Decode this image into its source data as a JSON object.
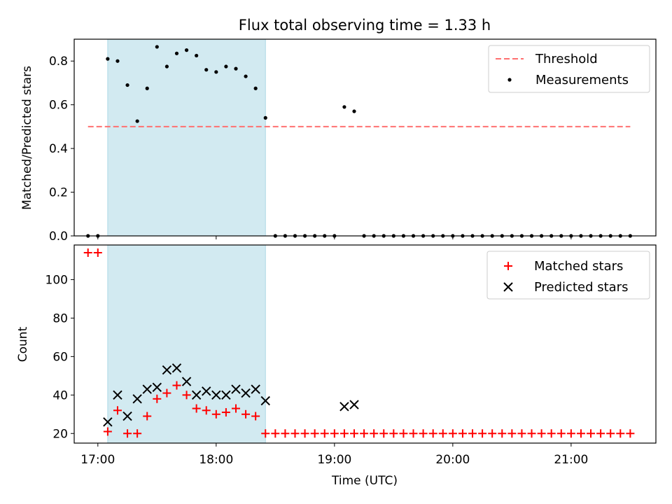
{
  "title": "Flux total observing time = 1.33 h",
  "colors": {
    "threshold": "#ff7070",
    "measurements": "#000000",
    "matched": "#ff0000",
    "predicted": "#000000",
    "shade": "#add8e6"
  },
  "chart_data": [
    {
      "type": "scatter",
      "ylabel": "Matched/Predicted stars",
      "xlabel": "",
      "xlim": [
        "16:48",
        "21:43"
      ],
      "ylim": [
        0,
        0.9
      ],
      "yticks": [
        "0.0",
        "0.2",
        "0.4",
        "0.6",
        "0.8"
      ],
      "shaded_span": [
        "17:05",
        "18:25"
      ],
      "legend": {
        "position": "top-right",
        "entries": [
          "Threshold",
          "Measurements"
        ]
      },
      "threshold": {
        "name": "Threshold",
        "y": 0.5,
        "x": [
          "16:55",
          "21:30"
        ],
        "style": "dashed"
      },
      "series": [
        {
          "name": "Measurements",
          "x": [
            "16:55",
            "17:00",
            "17:05",
            "17:10",
            "17:15",
            "17:20",
            "17:25",
            "17:30",
            "17:35",
            "17:40",
            "17:45",
            "17:50",
            "17:55",
            "18:00",
            "18:05",
            "18:10",
            "18:15",
            "18:20",
            "18:25",
            "18:30",
            "18:35",
            "18:40",
            "18:45",
            "18:50",
            "18:55",
            "19:00",
            "19:05",
            "19:10",
            "19:15",
            "19:20",
            "19:25",
            "19:30",
            "19:35",
            "19:40",
            "19:45",
            "19:50",
            "19:55",
            "20:00",
            "20:05",
            "20:10",
            "20:15",
            "20:20",
            "20:25",
            "20:30",
            "20:35",
            "20:40",
            "20:45",
            "20:50",
            "20:55",
            "21:00",
            "21:05",
            "21:10",
            "21:15",
            "21:20",
            "21:25",
            "21:30"
          ],
          "y": [
            0,
            0,
            0.81,
            0.8,
            0.69,
            0.525,
            0.675,
            0.865,
            0.775,
            0.835,
            0.85,
            0.825,
            0.76,
            0.75,
            0.775,
            0.765,
            0.73,
            0.675,
            0.54,
            0,
            0,
            0,
            0,
            0,
            0,
            0,
            0.59,
            0.57,
            0,
            0,
            0,
            0,
            0,
            0,
            0,
            0,
            0,
            0,
            0,
            0,
            0,
            0,
            0,
            0,
            0,
            0,
            0,
            0,
            0,
            0,
            0,
            0,
            0,
            0,
            0,
            0
          ]
        }
      ]
    },
    {
      "type": "scatter",
      "ylabel": "Count",
      "xlabel": "Time (UTC)",
      "xlim": [
        "16:48",
        "21:43"
      ],
      "ylim": [
        15,
        118
      ],
      "yticks": [
        "20",
        "40",
        "60",
        "80",
        "100"
      ],
      "xticks": [
        "17:00",
        "18:00",
        "19:00",
        "20:00",
        "21:00"
      ],
      "shaded_span": [
        "17:05",
        "18:25"
      ],
      "legend": {
        "position": "top-right",
        "entries": [
          "Matched stars",
          "Predicted stars"
        ]
      },
      "series": [
        {
          "name": "Matched stars",
          "marker": "plus",
          "x": [
            "16:55",
            "17:00",
            "17:05",
            "17:10",
            "17:15",
            "17:20",
            "17:25",
            "17:30",
            "17:35",
            "17:40",
            "17:45",
            "17:50",
            "17:55",
            "18:00",
            "18:05",
            "18:10",
            "18:15",
            "18:20",
            "18:25",
            "18:30",
            "18:35",
            "18:40",
            "18:45",
            "18:50",
            "18:55",
            "19:00",
            "19:05",
            "19:10",
            "19:15",
            "19:20",
            "19:25",
            "19:30",
            "19:35",
            "19:40",
            "19:45",
            "19:50",
            "19:55",
            "20:00",
            "20:05",
            "20:10",
            "20:15",
            "20:20",
            "20:25",
            "20:30",
            "20:35",
            "20:40",
            "20:45",
            "20:50",
            "20:55",
            "21:00",
            "21:05",
            "21:10",
            "21:15",
            "21:20",
            "21:25",
            "21:30"
          ],
          "y": [
            114,
            114,
            21,
            32,
            20,
            20,
            29,
            38,
            41,
            45,
            40,
            33,
            32,
            30,
            31,
            33,
            30,
            29,
            20,
            20,
            20,
            20,
            20,
            20,
            20,
            20,
            20,
            20,
            20,
            20,
            20,
            20,
            20,
            20,
            20,
            20,
            20,
            20,
            20,
            20,
            20,
            20,
            20,
            20,
            20,
            20,
            20,
            20,
            20,
            20,
            20,
            20,
            20,
            20,
            20,
            20
          ]
        },
        {
          "name": "Predicted stars",
          "marker": "x",
          "x": [
            "17:05",
            "17:10",
            "17:15",
            "17:20",
            "17:25",
            "17:30",
            "17:35",
            "17:40",
            "17:45",
            "17:50",
            "17:55",
            "18:00",
            "18:05",
            "18:10",
            "18:15",
            "18:20",
            "18:25",
            "19:05",
            "19:10"
          ],
          "y": [
            26,
            40,
            29,
            38,
            43,
            44,
            53,
            54,
            47,
            40,
            42,
            40,
            40,
            43,
            41,
            43,
            37,
            34,
            35
          ]
        }
      ]
    }
  ]
}
